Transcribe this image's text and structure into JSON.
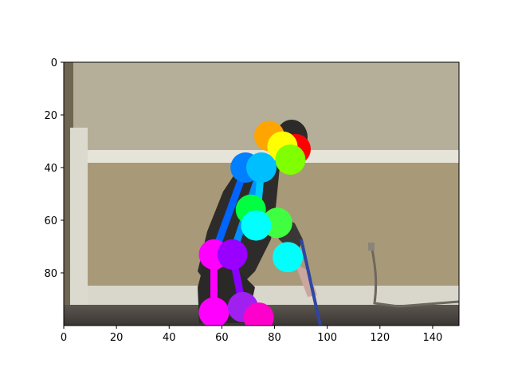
{
  "chart_data": {
    "type": "image",
    "title": "",
    "xlabel": "",
    "ylabel": "",
    "xlim": [
      0,
      150
    ],
    "ylim": [
      100,
      0
    ],
    "xticks": [
      0,
      20,
      40,
      60,
      80,
      100,
      120,
      140
    ],
    "yticks": [
      0,
      20,
      40,
      60,
      80
    ],
    "grid": false,
    "legend": "none",
    "keypoints": [
      {
        "name": "head-top",
        "x": 78,
        "y": 28,
        "color": "#ffa500"
      },
      {
        "name": "ear-red",
        "x": 88,
        "y": 33,
        "color": "#ff0000"
      },
      {
        "name": "head-yellow",
        "x": 83,
        "y": 32,
        "color": "#ffff00"
      },
      {
        "name": "head-green",
        "x": 86,
        "y": 37,
        "color": "#80ff00"
      },
      {
        "name": "shoulder-left",
        "x": 69,
        "y": 40,
        "color": "#0080ff"
      },
      {
        "name": "shoulder-right",
        "x": 75,
        "y": 40,
        "color": "#00bfff"
      },
      {
        "name": "hip-green",
        "x": 71,
        "y": 56,
        "color": "#00ff40"
      },
      {
        "name": "elbow-green",
        "x": 81,
        "y": 61,
        "color": "#40ff40"
      },
      {
        "name": "hip-cyan",
        "x": 73,
        "y": 62,
        "color": "#00ffff"
      },
      {
        "name": "wrist-cyan",
        "x": 85,
        "y": 74,
        "color": "#00ffff"
      },
      {
        "name": "knee-magenta",
        "x": 57,
        "y": 73,
        "color": "#ff00ff"
      },
      {
        "name": "knee-violet",
        "x": 64,
        "y": 73,
        "color": "#9900ff"
      },
      {
        "name": "ankle-magenta",
        "x": 57,
        "y": 95,
        "color": "#ff00ff"
      },
      {
        "name": "ankle-violet",
        "x": 68,
        "y": 93,
        "color": "#a020f0"
      },
      {
        "name": "foot-magenta",
        "x": 74,
        "y": 97,
        "color": "#ff00cc"
      }
    ],
    "limbs": [
      {
        "from": "shoulder-left",
        "to": "knee-magenta",
        "color": "#0064ff"
      },
      {
        "from": "shoulder-right",
        "to": "knee-violet",
        "color": "#0090ff"
      },
      {
        "from": "shoulder-right",
        "to": "hip-cyan",
        "color": "#00c8ff"
      },
      {
        "from": "knee-magenta",
        "to": "ankle-magenta",
        "color": "#ff00ff"
      },
      {
        "from": "knee-violet",
        "to": "ankle-violet",
        "color": "#8a00ff"
      },
      {
        "from": "hip-green",
        "to": "elbow-green",
        "color": "#30ff40"
      }
    ]
  }
}
